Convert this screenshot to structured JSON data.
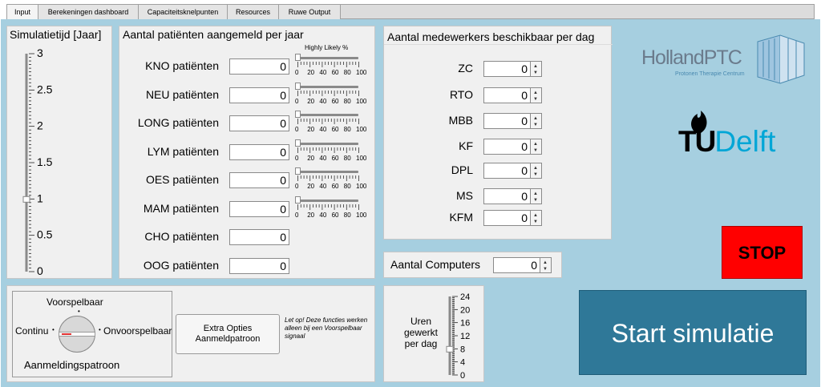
{
  "tabs": [
    "Input",
    "Berekeningen dashboard",
    "Capaciteitsknelpunten",
    "Resources",
    "Ruwe Output"
  ],
  "simtime": {
    "title": "Simulatietijd [Jaar]",
    "ticks": [
      "3",
      "2.5",
      "2",
      "1.5",
      "1",
      "0.5",
      "0"
    ],
    "value": 1
  },
  "patients": {
    "title": "Aantal patiënten aangemeld per jaar",
    "slider_header": "Highly Likely %",
    "slider_ticks": [
      "0",
      "20",
      "40",
      "60",
      "80",
      "100"
    ],
    "rows": [
      {
        "label": "KNO patiënten",
        "value": "0",
        "slider": true,
        "pct": 0
      },
      {
        "label": "NEU patiënten",
        "value": "0",
        "slider": true,
        "pct": 0
      },
      {
        "label": "LONG patiënten",
        "value": "0",
        "slider": true,
        "pct": 0
      },
      {
        "label": "LYM patiënten",
        "value": "0",
        "slider": true,
        "pct": 0
      },
      {
        "label": "OES patiënten",
        "value": "0",
        "slider": true,
        "pct": 0
      },
      {
        "label": "MAM patiënten",
        "value": "0",
        "slider": true,
        "pct": 0
      },
      {
        "label": "CHO patiënten",
        "value": "0",
        "slider": false
      },
      {
        "label": "OOG patiënten",
        "value": "0",
        "slider": false
      }
    ]
  },
  "staff": {
    "title": "Aantal medewerkers beschikbaar per dag",
    "rows": [
      {
        "label": "ZC",
        "value": "0"
      },
      {
        "label": "RTO",
        "value": "0"
      },
      {
        "label": "MBB",
        "value": "0"
      },
      {
        "label": "KF",
        "value": "0"
      },
      {
        "label": "DPL",
        "value": "0"
      },
      {
        "label": "MS",
        "value": "0"
      },
      {
        "label": "KFM",
        "value": "0"
      }
    ]
  },
  "computers": {
    "label": "Aantal Computers",
    "value": "0"
  },
  "hours": {
    "label": "Uren gewerkt per dag",
    "ticks": [
      "24",
      "20",
      "16",
      "12",
      "8",
      "4",
      "0"
    ],
    "value": 8
  },
  "pattern": {
    "top": "Voorspelbaar",
    "left": "Continu",
    "right": "Onvoorspelbaar",
    "bottom": "Aanmeldingspatroon"
  },
  "extra_button": "Extra Opties Aanmeldpatroon",
  "note": "Let op! Deze functies werken alleen bij een Voorspelbaar signaal",
  "logos": {
    "holland_main": "HollandPTC",
    "holland_sub": "Protonen Therapie Centrum",
    "tud_tu": "TU",
    "tud_delft": "Delft"
  },
  "stop_label": "STOP",
  "start_label": "Start simulatie",
  "colors": {
    "background": "#a6cfe0",
    "stop": "#ff0000",
    "start": "#2f7898",
    "tud_blue": "#00a6d6"
  }
}
